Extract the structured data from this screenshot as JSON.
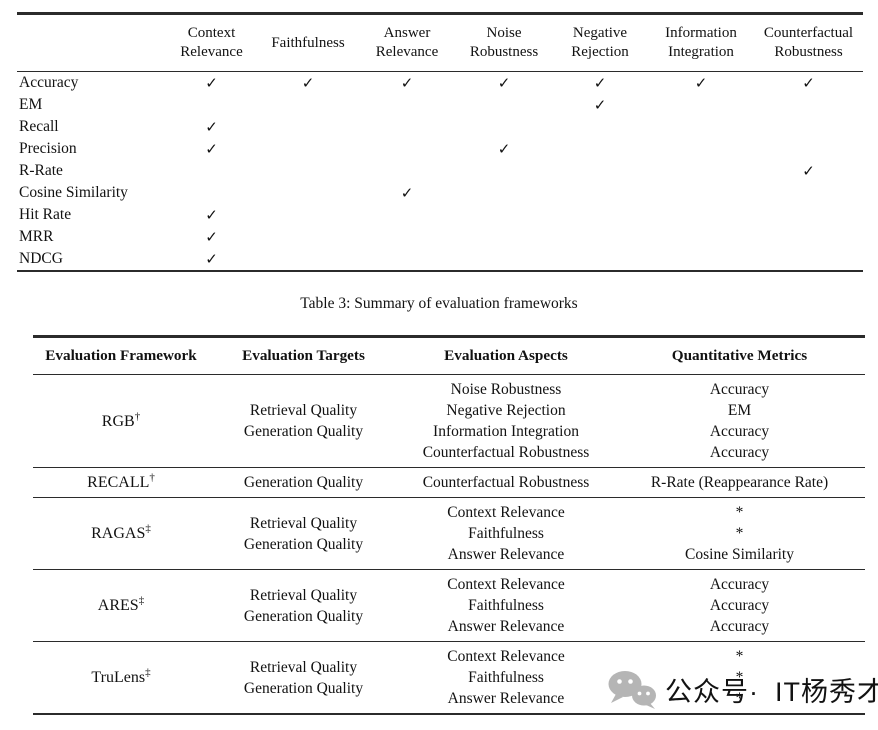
{
  "metrics_table": {
    "columns": [
      "Context Relevance",
      "Faithfulness",
      "Answer Relevance",
      "Noise Robustness",
      "Negative Rejection",
      "Information Integration",
      "Counterfactual Robustness"
    ],
    "check_glyph": "✓",
    "rows": [
      {
        "label": "Accuracy",
        "checks": [
          true,
          true,
          true,
          true,
          true,
          true,
          true
        ]
      },
      {
        "label": "EM",
        "checks": [
          false,
          false,
          false,
          false,
          true,
          false,
          false
        ]
      },
      {
        "label": "Recall",
        "checks": [
          true,
          false,
          false,
          false,
          false,
          false,
          false
        ]
      },
      {
        "label": "Precision",
        "checks": [
          true,
          false,
          false,
          true,
          false,
          false,
          false
        ]
      },
      {
        "label": "R-Rate",
        "checks": [
          false,
          false,
          false,
          false,
          false,
          false,
          true
        ]
      },
      {
        "label": "Cosine Similarity",
        "checks": [
          false,
          false,
          true,
          false,
          false,
          false,
          false
        ]
      },
      {
        "label": "Hit Rate",
        "checks": [
          true,
          false,
          false,
          false,
          false,
          false,
          false
        ]
      },
      {
        "label": "MRR",
        "checks": [
          true,
          false,
          false,
          false,
          false,
          false,
          false
        ]
      },
      {
        "label": "NDCG",
        "checks": [
          true,
          false,
          false,
          false,
          false,
          false,
          false
        ]
      }
    ]
  },
  "caption": "Table 3: Summary of evaluation frameworks",
  "frameworks_table": {
    "columns": [
      "Evaluation Framework",
      "Evaluation Targets",
      "Evaluation Aspects",
      "Quantitative Metrics"
    ],
    "rows": [
      {
        "name": "RGB",
        "marker": "†",
        "targets": [
          "Retrieval Quality",
          "Generation Quality"
        ],
        "aspects": [
          "Noise Robustness",
          "Negative Rejection",
          "Information Integration",
          "Counterfactual Robustness"
        ],
        "metrics": [
          "Accuracy",
          "EM",
          "Accuracy",
          "Accuracy"
        ]
      },
      {
        "name": "RECALL",
        "marker": "†",
        "targets": [
          "Generation Quality"
        ],
        "aspects": [
          "Counterfactual Robustness"
        ],
        "metrics": [
          "R-Rate (Reappearance Rate)"
        ]
      },
      {
        "name": "RAGAS",
        "marker": "‡",
        "targets": [
          "Retrieval Quality",
          "Generation Quality"
        ],
        "aspects": [
          "Context Relevance",
          "Faithfulness",
          "Answer Relevance"
        ],
        "metrics": [
          "*",
          "*",
          "Cosine Similarity"
        ]
      },
      {
        "name": "ARES",
        "marker": "‡",
        "targets": [
          "Retrieval Quality",
          "Generation Quality"
        ],
        "aspects": [
          "Context Relevance",
          "Faithfulness",
          "Answer Relevance"
        ],
        "metrics": [
          "Accuracy",
          "Accuracy",
          "Accuracy"
        ]
      },
      {
        "name": "TruLens",
        "marker": "‡",
        "targets": [
          "Retrieval Quality",
          "Generation Quality"
        ],
        "aspects": [
          "Context Relevance",
          "Faithfulness",
          "Answer Relevance"
        ],
        "metrics": [
          "*",
          "*",
          "*"
        ]
      }
    ]
  },
  "watermark": {
    "icon": "wechat-icon",
    "label": "公众号·",
    "brand": "IT杨秀才",
    "color": "#b5b5b5"
  }
}
